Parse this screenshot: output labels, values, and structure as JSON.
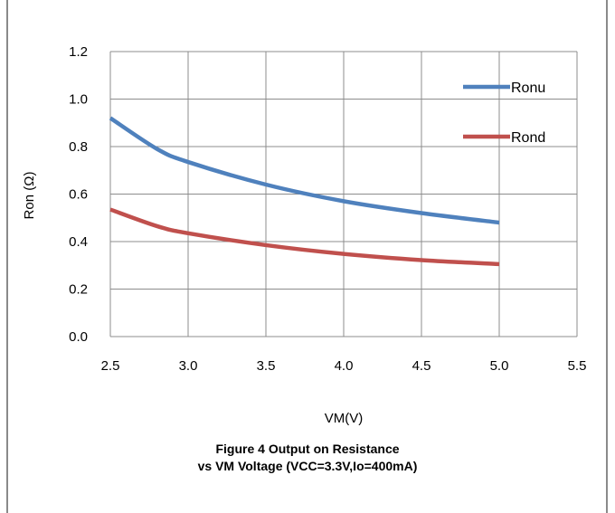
{
  "chart_data": {
    "type": "line",
    "xlabel": "VM(V)",
    "ylabel": "Ron (Ω)",
    "xlim": [
      2.5,
      5.5
    ],
    "ylim": [
      0.0,
      1.2
    ],
    "xticks": [
      "2.5",
      "3.0",
      "3.5",
      "4.0",
      "4.5",
      "5.0",
      "5.5"
    ],
    "yticks": [
      "0.0",
      "0.2",
      "0.4",
      "0.6",
      "0.8",
      "1.0",
      "1.2"
    ],
    "grid": true,
    "legend_position": "right",
    "series": [
      {
        "name": "Ronu",
        "color": "#4f81bd",
        "x": [
          2.5,
          2.8,
          3.0,
          3.5,
          4.0,
          4.5,
          5.0
        ],
        "y": [
          0.92,
          0.79,
          0.735,
          0.64,
          0.57,
          0.52,
          0.48
        ]
      },
      {
        "name": "Rond",
        "color": "#c0504d",
        "x": [
          2.5,
          2.8,
          3.0,
          3.5,
          4.0,
          4.5,
          5.0
        ],
        "y": [
          0.535,
          0.465,
          0.435,
          0.385,
          0.348,
          0.322,
          0.305
        ]
      }
    ]
  },
  "caption": {
    "line1": "Figure 4  Output on Resistance",
    "line2": "vs VM Voltage (VCC=3.3V,Io=400mA)"
  }
}
